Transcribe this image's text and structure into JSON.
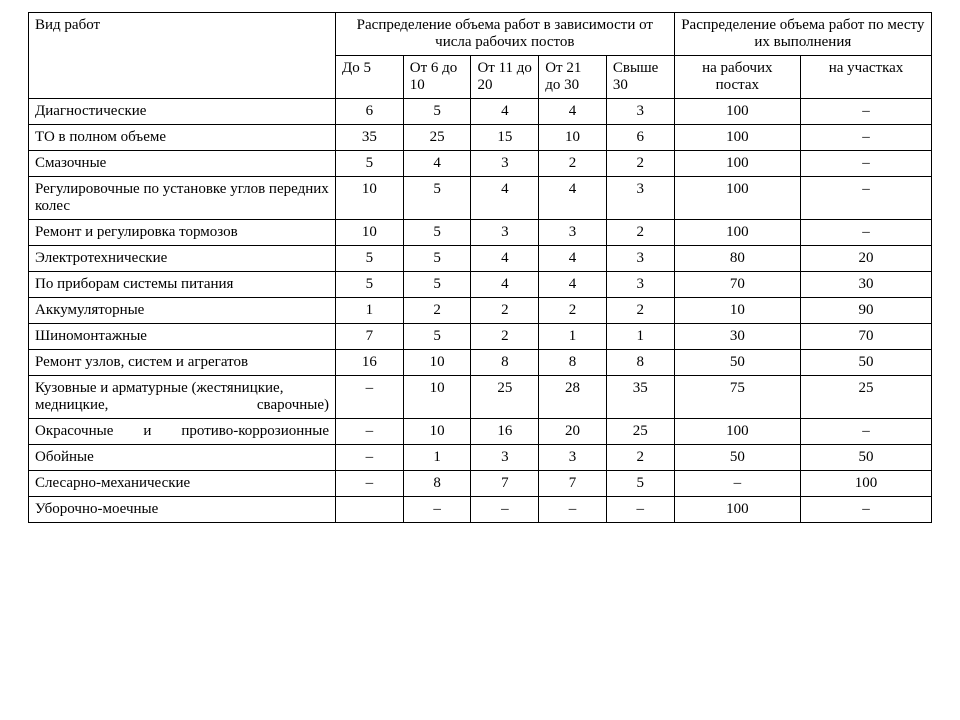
{
  "table": {
    "type": "table",
    "background_color": "#ffffff",
    "border_color": "#000000",
    "text_color": "#000000",
    "fontsize_pt": 12,
    "col_widths_pct": [
      34,
      7.5,
      7.5,
      7.5,
      7.5,
      7.5,
      14,
      14.5
    ],
    "header": {
      "work_type": "Вид работ",
      "group_posts": "Распределение объема работ в зависимости от числа рабочих постов",
      "group_place": "Распределение объема работ по месту их выполнения",
      "posts": [
        "До 5",
        "От 6 до 10",
        "От 11 до 20",
        "От 21 до 30",
        "Свыше 30"
      ],
      "place": [
        "на рабочих постах",
        "на участках"
      ]
    },
    "rows": [
      {
        "label": "Диагностические",
        "justify": false,
        "cells": [
          "6",
          "5",
          "4",
          "4",
          "3",
          "100",
          "–"
        ]
      },
      {
        "label": "ТО в полном объеме",
        "justify": false,
        "cells": [
          "35",
          "25",
          "15",
          "10",
          "6",
          "100",
          "–"
        ]
      },
      {
        "label": "Смазочные",
        "justify": false,
        "cells": [
          "5",
          "4",
          "3",
          "2",
          "2",
          "100",
          "–"
        ]
      },
      {
        "label": "Регулировочные по установке углов передних колес",
        "justify": false,
        "cells": [
          "10",
          "5",
          "4",
          "4",
          "3",
          "100",
          "–"
        ]
      },
      {
        "label": "Ремонт и регулировка тормозов",
        "justify": false,
        "cells": [
          "10",
          "5",
          "3",
          "3",
          "2",
          "100",
          "–"
        ]
      },
      {
        "label": "Электротехнические",
        "justify": false,
        "cells": [
          "5",
          "5",
          "4",
          "4",
          "3",
          "80",
          "20"
        ]
      },
      {
        "label": "По приборам системы питания",
        "justify": false,
        "cells": [
          "5",
          "5",
          "4",
          "4",
          "3",
          "70",
          "30"
        ]
      },
      {
        "label": "Аккумуляторные",
        "justify": false,
        "cells": [
          "1",
          "2",
          "2",
          "2",
          "2",
          "10",
          "90"
        ]
      },
      {
        "label": "Шиномонтажные",
        "justify": false,
        "cells": [
          "7",
          "5",
          "2",
          "1",
          "1",
          "30",
          "70"
        ]
      },
      {
        "label": "Ремонт узлов, систем и агрегатов",
        "justify": false,
        "cells": [
          "16",
          "10",
          "8",
          "8",
          "8",
          "50",
          "50"
        ]
      },
      {
        "label": "Кузовные и арматурные (жестяницкие, медницкие, сварочные)",
        "justify": true,
        "cells": [
          "–",
          "10",
          "25",
          "28",
          "35",
          "75",
          "25"
        ]
      },
      {
        "label": "Окрасочные и противо-коррозионные",
        "justify": true,
        "cells": [
          "–",
          "10",
          "16",
          "20",
          "25",
          "100",
          "–"
        ]
      },
      {
        "label": "Обойные",
        "justify": false,
        "cells": [
          "–",
          "1",
          "3",
          "3",
          "2",
          "50",
          "50"
        ]
      },
      {
        "label": "Слесарно-механические",
        "justify": false,
        "cells": [
          "–",
          "8",
          "7",
          "7",
          "5",
          "–",
          "100"
        ]
      },
      {
        "label": "Уборочно-моечные",
        "justify": false,
        "cells": [
          "",
          "–",
          "–",
          "–",
          "–",
          "100",
          "–"
        ]
      }
    ]
  }
}
